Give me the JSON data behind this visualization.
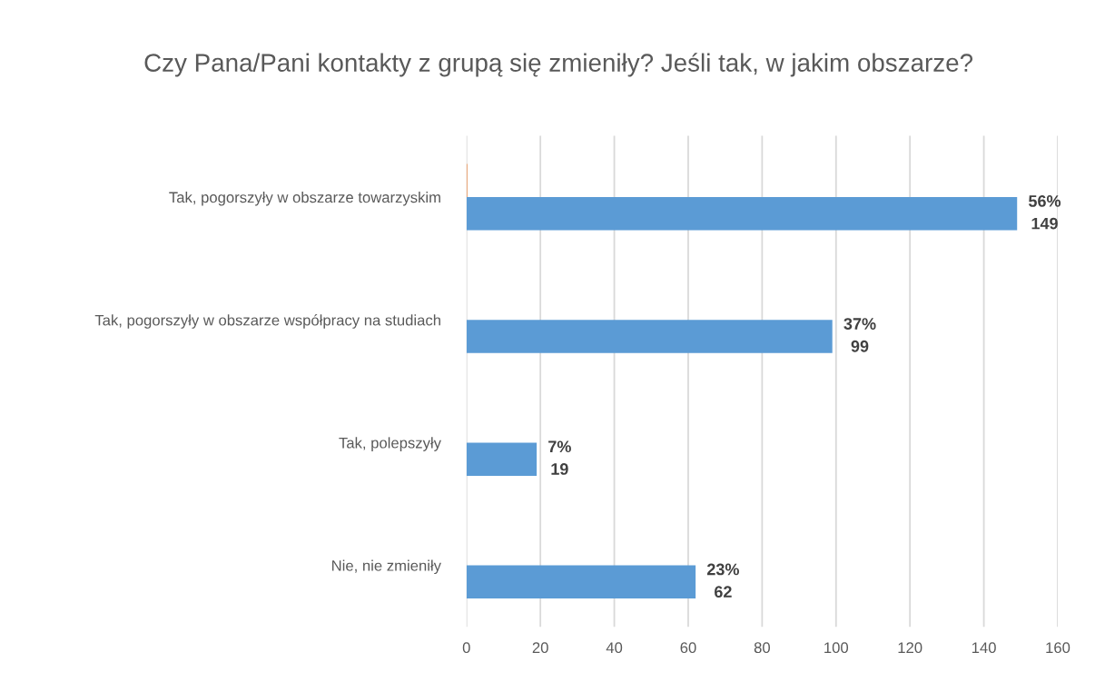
{
  "chart_data": {
    "type": "bar",
    "orientation": "horizontal",
    "title": "Czy Pana/Pani kontakty z grupą się zmieniły? Jeśli tak, w jakim obszarze?",
    "categories": [
      "Tak, pogorszyły w obszarze towarzyskim",
      "Tak, pogorszyły w obszarze współpracy na studiach",
      "Tak, polepszyły",
      "Nie, nie zmieniły"
    ],
    "series": [
      {
        "color": "#5b9bd5",
        "values": [
          149,
          99,
          19,
          62
        ],
        "value_labels": [
          "56%\n149",
          "37%\n99",
          "7%\n19",
          "23%\n62"
        ]
      },
      {
        "color": "#ed7d31",
        "values": [
          0.2,
          null,
          null,
          null
        ]
      }
    ],
    "xlim": [
      0,
      160
    ],
    "xticks": [
      0,
      20,
      40,
      60,
      80,
      100,
      120,
      140,
      160
    ],
    "grid": "x",
    "legend": false
  }
}
